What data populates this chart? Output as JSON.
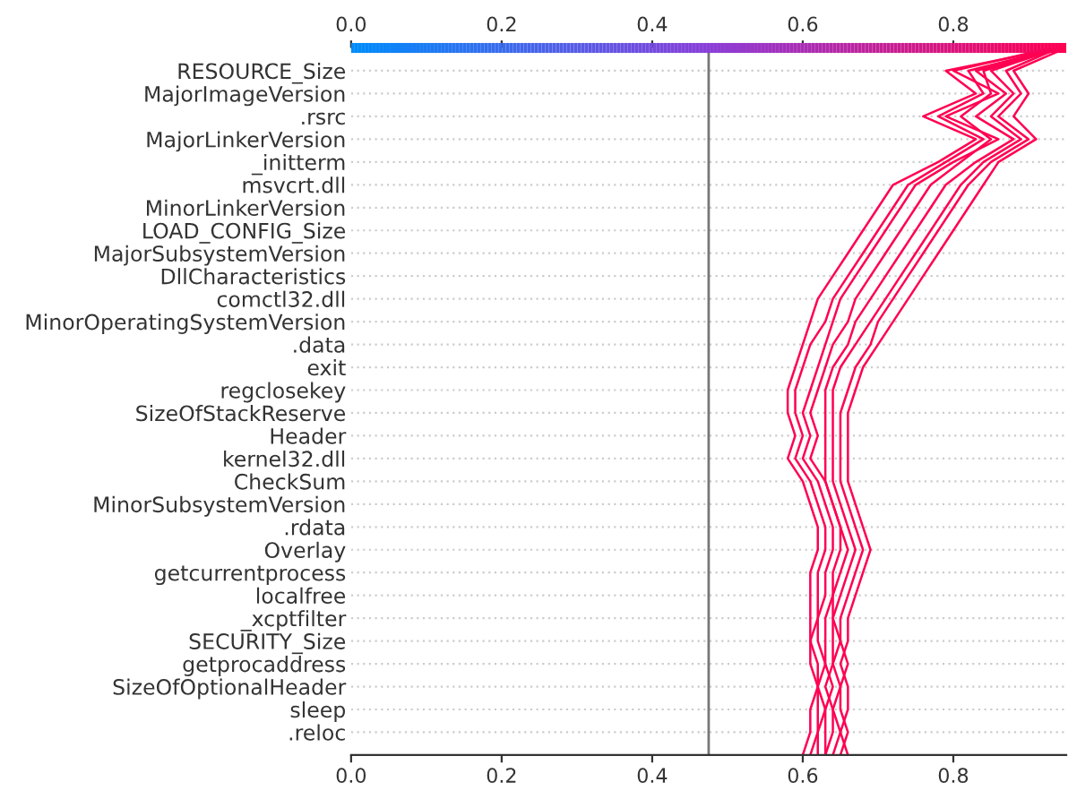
{
  "chart_data": {
    "type": "line",
    "orientation": "horizontal",
    "categories": [
      null,
      "RESOURCE_Size",
      "MajorImageVersion",
      ".rsrc",
      "MajorLinkerVersion",
      "_initterm",
      "msvcrt.dll",
      "MinorLinkerVersion",
      "LOAD_CONFIG_Size",
      "MajorSubsystemVersion",
      "DllCharacteristics",
      "comctl32.dll",
      "MinorOperatingSystemVersion",
      ".data",
      "exit",
      "regclosekey",
      "SizeOfStackReserve",
      "Header",
      "kernel32.dll",
      "CheckSum",
      "MinorSubsystemVersion",
      ".rdata",
      "Overlay",
      "getcurrentprocess",
      "localfree",
      "_xcptfilter",
      "SECURITY_Size",
      "getprocaddress",
      "SizeOfOptionalHeader",
      "sleep",
      ".reloc",
      null
    ],
    "series": [
      {
        "color": "#ff0052",
        "values": [
          0.94,
          0.79,
          0.83,
          0.76,
          0.83,
          0.78,
          0.72,
          0.7,
          0.68,
          0.66,
          0.64,
          0.62,
          0.61,
          0.6,
          0.59,
          0.58,
          0.58,
          0.59,
          0.58,
          0.6,
          0.61,
          0.62,
          0.62,
          0.61,
          0.61,
          0.61,
          0.61,
          0.61,
          0.62,
          0.61,
          0.61,
          0.6
        ]
      },
      {
        "color": "#ff0052",
        "values": [
          0.94,
          0.82,
          0.84,
          0.78,
          0.84,
          0.79,
          0.74,
          0.72,
          0.7,
          0.68,
          0.66,
          0.64,
          0.63,
          0.61,
          0.6,
          0.59,
          0.59,
          0.6,
          0.59,
          0.61,
          0.62,
          0.63,
          0.63,
          0.62,
          0.62,
          0.62,
          0.61,
          0.62,
          0.62,
          0.62,
          0.62,
          0.61
        ]
      },
      {
        "color": "#ff0052",
        "values": [
          0.93,
          0.8,
          0.86,
          0.79,
          0.86,
          0.8,
          0.75,
          0.73,
          0.71,
          0.69,
          0.67,
          0.65,
          0.64,
          0.63,
          0.62,
          0.61,
          0.6,
          0.61,
          0.6,
          0.62,
          0.63,
          0.64,
          0.64,
          0.63,
          0.63,
          0.62,
          0.62,
          0.63,
          0.62,
          0.63,
          0.62,
          0.62
        ]
      },
      {
        "color": "#ff0052",
        "values": [
          0.94,
          0.84,
          0.85,
          0.81,
          0.85,
          0.81,
          0.77,
          0.75,
          0.73,
          0.71,
          0.69,
          0.67,
          0.66,
          0.64,
          0.63,
          0.62,
          0.61,
          0.62,
          0.61,
          0.63,
          0.64,
          0.65,
          0.65,
          0.64,
          0.64,
          0.63,
          0.63,
          0.63,
          0.64,
          0.63,
          0.63,
          0.63
        ]
      },
      {
        "color": "#ff0052",
        "values": [
          0.95,
          0.83,
          0.87,
          0.83,
          0.88,
          0.83,
          0.79,
          0.77,
          0.75,
          0.73,
          0.71,
          0.69,
          0.67,
          0.66,
          0.64,
          0.63,
          0.63,
          0.63,
          0.63,
          0.63,
          0.64,
          0.65,
          0.66,
          0.65,
          0.64,
          0.64,
          0.64,
          0.64,
          0.63,
          0.64,
          0.64,
          0.63
        ]
      },
      {
        "color": "#ff0052",
        "values": [
          0.94,
          0.85,
          0.88,
          0.85,
          0.89,
          0.84,
          0.81,
          0.79,
          0.77,
          0.75,
          0.73,
          0.71,
          0.69,
          0.67,
          0.65,
          0.64,
          0.64,
          0.64,
          0.64,
          0.64,
          0.65,
          0.66,
          0.67,
          0.66,
          0.65,
          0.64,
          0.65,
          0.64,
          0.65,
          0.64,
          0.65,
          0.64
        ]
      },
      {
        "color": "#ff0052",
        "values": [
          0.94,
          0.87,
          0.89,
          0.86,
          0.9,
          0.85,
          0.82,
          0.8,
          0.78,
          0.76,
          0.74,
          0.72,
          0.7,
          0.69,
          0.67,
          0.66,
          0.65,
          0.65,
          0.65,
          0.65,
          0.66,
          0.67,
          0.68,
          0.67,
          0.66,
          0.65,
          0.65,
          0.66,
          0.65,
          0.65,
          0.66,
          0.65
        ]
      },
      {
        "color": "#ff0052",
        "values": [
          0.95,
          0.88,
          0.9,
          0.88,
          0.91,
          0.86,
          0.84,
          0.82,
          0.8,
          0.78,
          0.76,
          0.74,
          0.72,
          0.7,
          0.68,
          0.67,
          0.66,
          0.66,
          0.66,
          0.66,
          0.67,
          0.68,
          0.69,
          0.68,
          0.67,
          0.66,
          0.66,
          0.65,
          0.66,
          0.66,
          0.65,
          0.66
        ]
      }
    ],
    "xlim": [
      0,
      0.95
    ],
    "xticks": [
      {
        "value": 0,
        "label": "0.0"
      },
      {
        "value": 0.2,
        "label": "0.2"
      },
      {
        "value": 0.4,
        "label": "0.4"
      },
      {
        "value": 0.6,
        "label": "0.6"
      },
      {
        "value": 0.8,
        "label": "0.8"
      }
    ],
    "x2lim": [
      0,
      0.95
    ],
    "x2ticks": [
      {
        "value": 0,
        "label": "0.0"
      },
      {
        "value": 0.2,
        "label": "0.2"
      },
      {
        "value": 0.4,
        "label": "0.4"
      },
      {
        "value": 0.6,
        "label": "0.6"
      },
      {
        "value": 0.8,
        "label": "0.8"
      }
    ],
    "ref_lines": [
      {
        "axis": "x",
        "value": 0.475,
        "color": "#777777"
      }
    ],
    "grid": "y",
    "legend": false
  }
}
